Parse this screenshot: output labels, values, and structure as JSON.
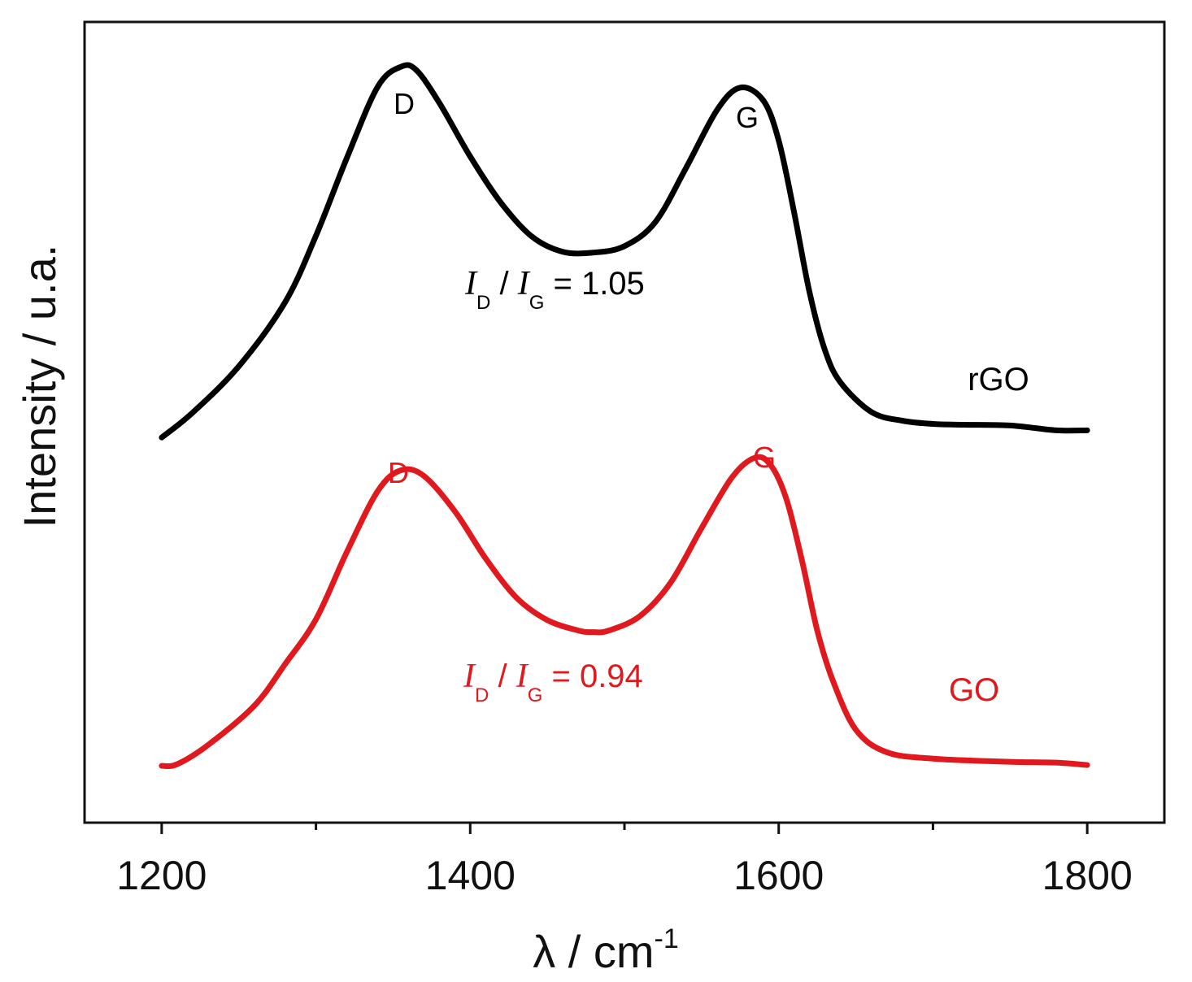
{
  "chart_data": {
    "type": "line",
    "title": "",
    "xlabel": "λ / cm",
    "xlabel_superscript": "-1",
    "ylabel": "Intensity / u.a.",
    "xlim": [
      1150,
      1850
    ],
    "ylim": [
      0,
      100
    ],
    "x_ticks": [
      1200,
      1400,
      1600,
      1800
    ],
    "x_minor_ticks": [
      1300,
      1500,
      1700
    ],
    "grid": false,
    "legend": "none",
    "series": [
      {
        "name": "rGO",
        "color": "#000000",
        "x": [
          1200,
          1220,
          1250,
          1280,
          1300,
          1320,
          1340,
          1355,
          1365,
          1380,
          1400,
          1420,
          1440,
          1460,
          1480,
          1500,
          1520,
          1540,
          1560,
          1575,
          1590,
          1600,
          1610,
          1620,
          1630,
          1640,
          1660,
          1680,
          1700,
          1720,
          1750,
          1780,
          1800
        ],
        "values": [
          48.1,
          51.2,
          57.0,
          65.0,
          73.3,
          83.0,
          91.9,
          94.4,
          94.0,
          89.9,
          83.2,
          77.4,
          73.2,
          71.3,
          71.2,
          72.0,
          75.0,
          81.8,
          89.0,
          91.8,
          90.2,
          85.2,
          76.2,
          66.2,
          59.0,
          55.0,
          51.3,
          50.2,
          49.8,
          49.7,
          49.6,
          49.0,
          49.0
        ]
      },
      {
        "name": "GO",
        "color": "#e0191e",
        "x": [
          1200,
          1210,
          1230,
          1260,
          1280,
          1300,
          1320,
          1340,
          1355,
          1370,
          1390,
          1410,
          1430,
          1450,
          1470,
          1480,
          1490,
          1510,
          1530,
          1550,
          1570,
          1585,
          1595,
          1605,
          1615,
          1625,
          1635,
          1650,
          1670,
          1700,
          1750,
          1780,
          1800
        ],
        "values": [
          7.1,
          7.3,
          9.7,
          14.6,
          19.8,
          25.4,
          33.8,
          41.4,
          44.0,
          43.3,
          38.9,
          33.0,
          28.1,
          25.3,
          24.0,
          23.8,
          24.0,
          25.8,
          30.0,
          36.8,
          43.2,
          45.6,
          44.6,
          40.4,
          32.8,
          24.0,
          17.8,
          11.6,
          8.8,
          8.0,
          7.6,
          7.5,
          7.2
        ]
      }
    ],
    "annotations": [
      {
        "id": "rgo-d",
        "series": "rGO",
        "text": "D",
        "color": "#000000"
      },
      {
        "id": "rgo-g",
        "series": "rGO",
        "text": "G",
        "color": "#000000"
      },
      {
        "id": "go-d",
        "series": "GO",
        "text": "D",
        "color": "#e0191e"
      },
      {
        "id": "go-g",
        "series": "GO",
        "text": "G",
        "color": "#e0191e"
      }
    ],
    "ratios": [
      {
        "id": "rgo-ratio",
        "series": "rGO",
        "italic_i": "I",
        "sub_d": "D",
        "sep": " / ",
        "sub_g": "G",
        "value_text": " = 1.05",
        "color": "#000000"
      },
      {
        "id": "go-ratio",
        "series": "GO",
        "italic_i": "I",
        "sub_d": "D",
        "sep": " / ",
        "sub_g": "G",
        "value_text": " = 0.94",
        "color": "#e0191e"
      }
    ]
  }
}
